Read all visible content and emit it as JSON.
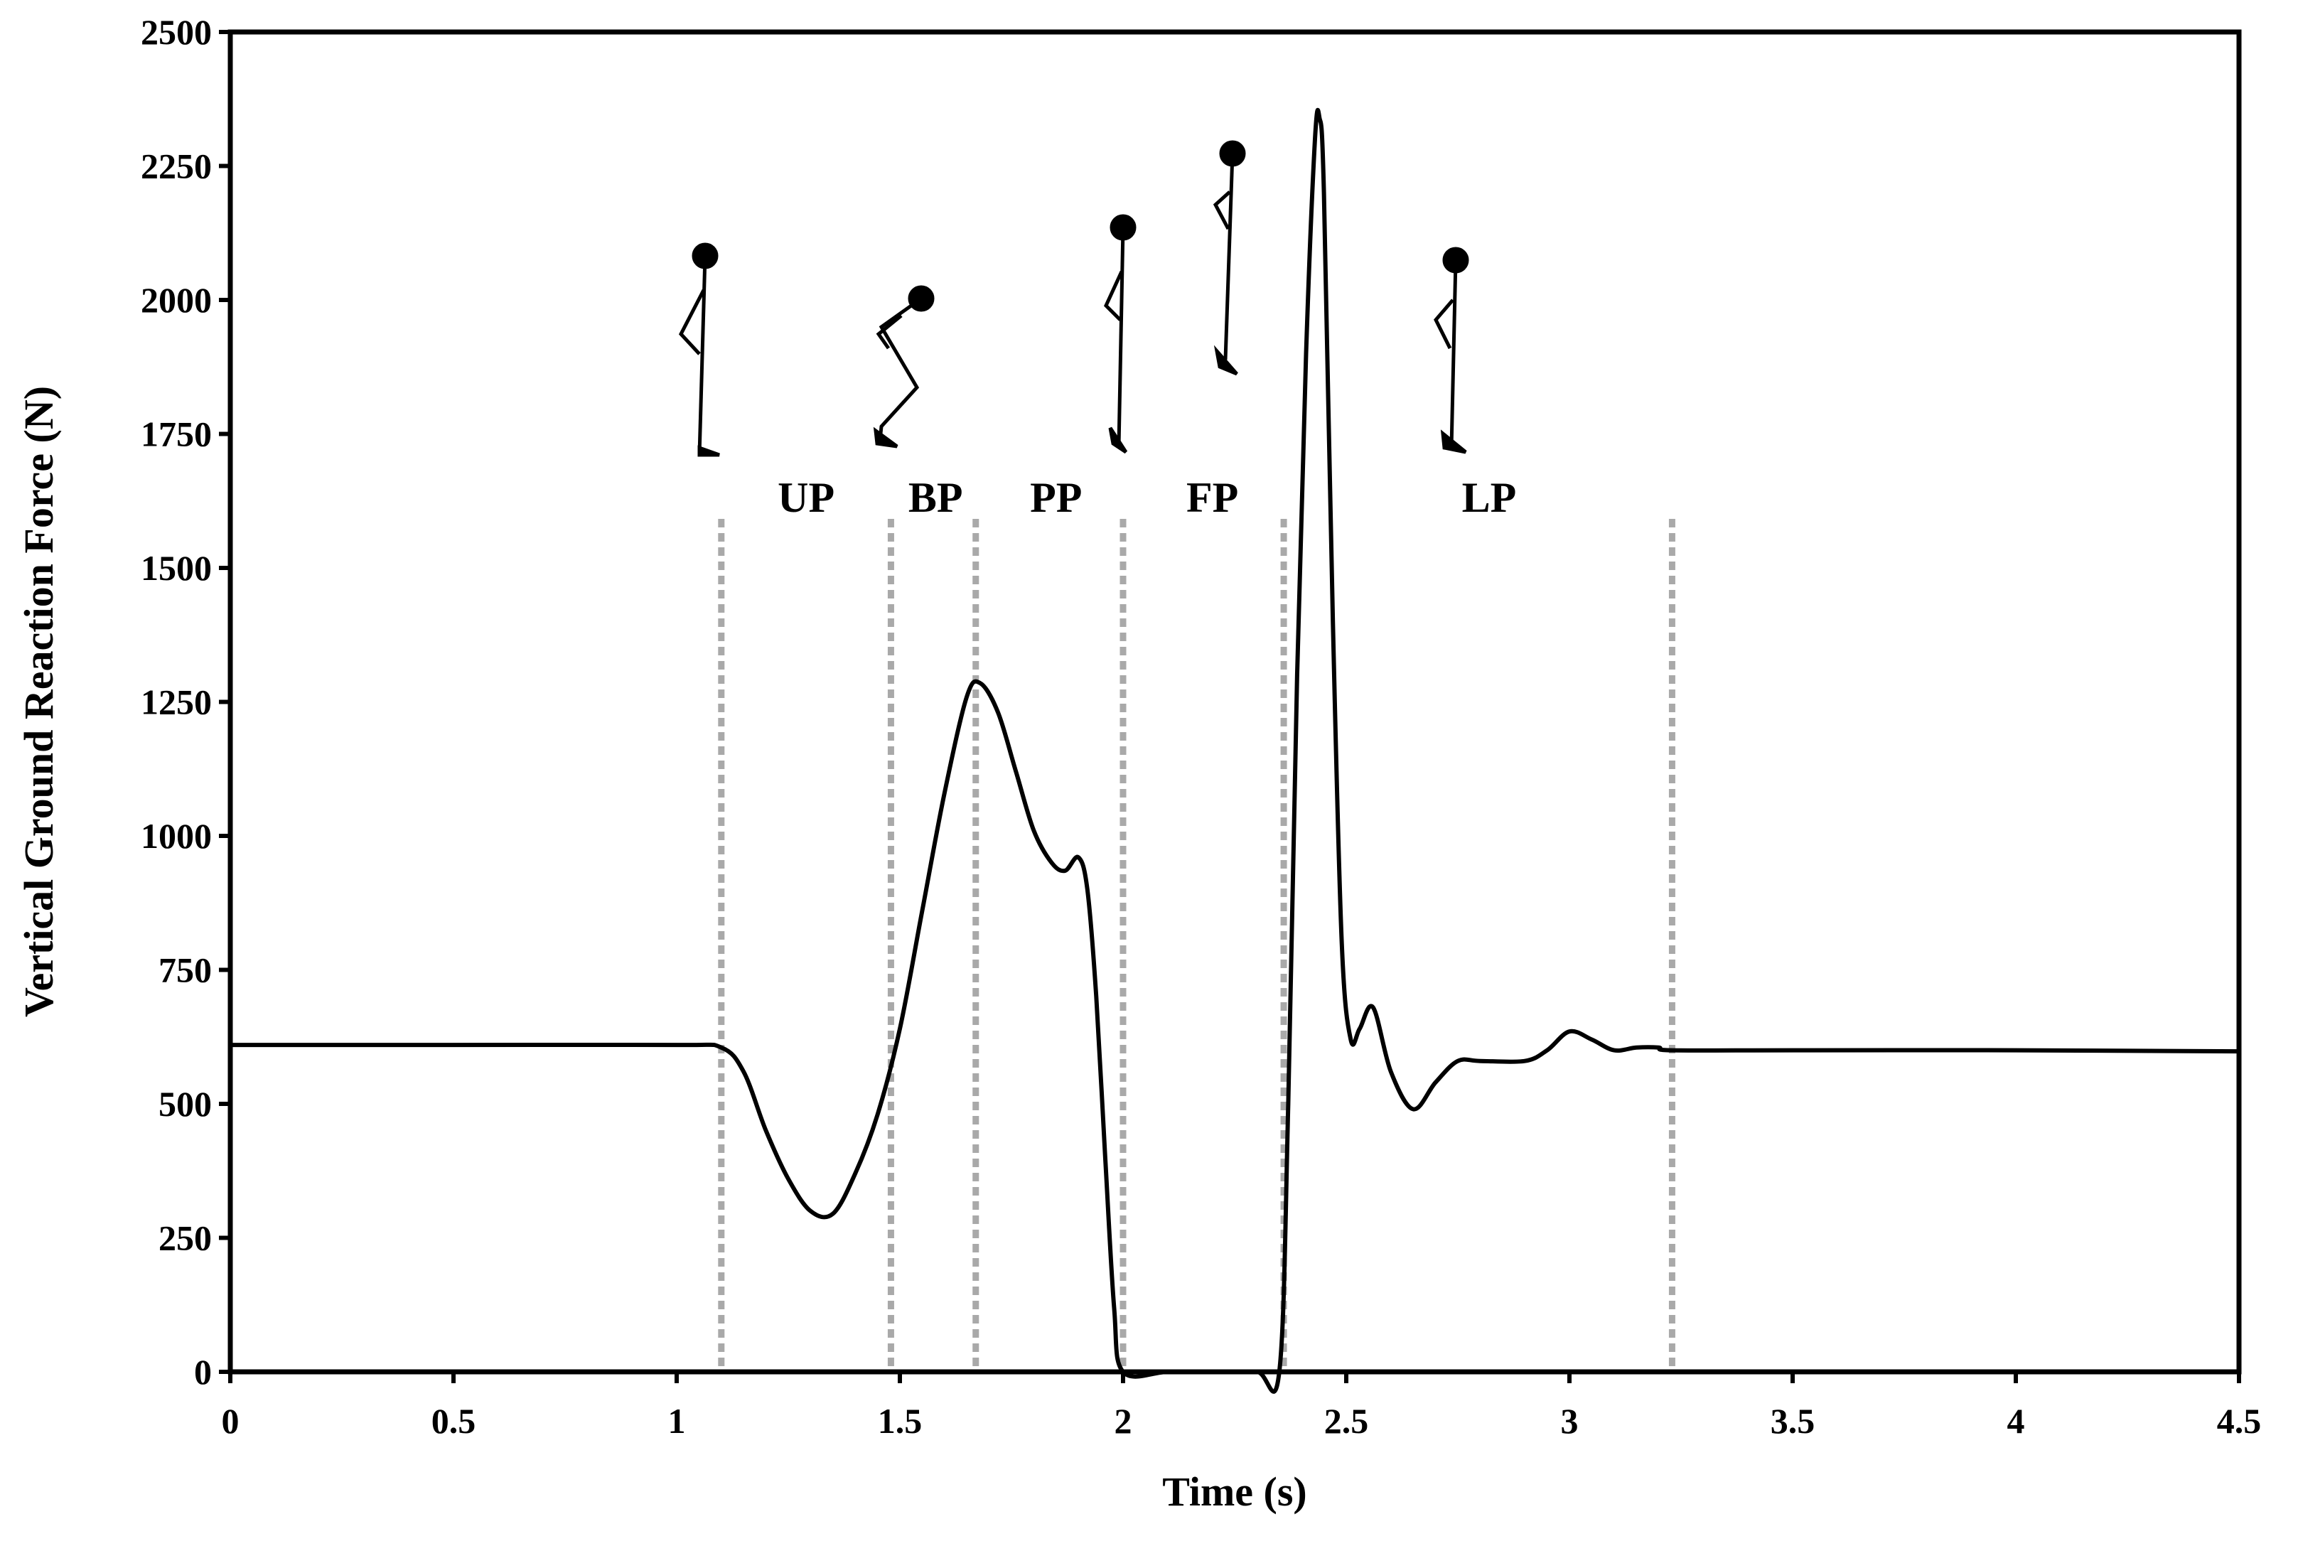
{
  "chart_data": {
    "type": "line",
    "title": "",
    "xlabel": "Time (s)",
    "ylabel": "Vertical Ground Reaction Force (N)",
    "xlim": [
      0,
      4.5
    ],
    "ylim": [
      0,
      2500
    ],
    "xticks": [
      0,
      0.5,
      1,
      1.5,
      2,
      2.5,
      3,
      3.5,
      4,
      4.5
    ],
    "xtick_labels": [
      "0",
      "0.5",
      "1",
      "1.5",
      "2",
      "2.5",
      "3",
      "3.5",
      "4",
      "4.5"
    ],
    "yticks": [
      0,
      250,
      500,
      750,
      1000,
      1250,
      1500,
      1750,
      2000,
      2250,
      2500
    ],
    "ytick_labels": [
      "0",
      "250",
      "500",
      "750",
      "1000",
      "1250",
      "1500",
      "1750",
      "2000",
      "2250",
      "2500"
    ],
    "grid": false,
    "legend": "none",
    "line_color": "#000000",
    "phase_line_color": "#a9a9a9",
    "phase_boundaries": [
      1.1,
      1.48,
      1.67,
      2.0,
      2.36,
      3.23
    ],
    "phases": [
      {
        "label": "UP",
        "x": 1.29
      },
      {
        "label": "BP",
        "x": 1.58
      },
      {
        "label": "PP",
        "x": 1.85
      },
      {
        "label": "FP",
        "x": 2.2
      },
      {
        "label": "LP",
        "x": 2.82
      }
    ],
    "series": [
      {
        "x": [
          0,
          0.5,
          1.0,
          1.1,
          1.15,
          1.2,
          1.25,
          1.3,
          1.35,
          1.4,
          1.45,
          1.5,
          1.55,
          1.6,
          1.65,
          1.68,
          1.72,
          1.76,
          1.8,
          1.84,
          1.87,
          1.9,
          1.92,
          1.94,
          1.96,
          1.98,
          2.0,
          2.1,
          2.2,
          2.3,
          2.35,
          2.37,
          2.39,
          2.41,
          2.43,
          2.44,
          2.45,
          2.47,
          2.49,
          2.51,
          2.53,
          2.56,
          2.6,
          2.65,
          2.7,
          2.75,
          2.8,
          2.9,
          2.95,
          3.0,
          3.05,
          3.1,
          3.15,
          3.2,
          3.23,
          3.5,
          4.0,
          4.5
        ],
        "y": [
          610,
          610,
          610,
          605,
          560,
          450,
          360,
          300,
          295,
          370,
          480,
          640,
          860,
          1080,
          1260,
          1285,
          1230,
          1120,
          1010,
          950,
          935,
          960,
          900,
          700,
          400,
          120,
          0,
          0,
          0,
          0,
          0,
          500,
          1300,
          1900,
          2300,
          2340,
          2200,
          1400,
          800,
          620,
          640,
          680,
          560,
          490,
          540,
          580,
          580,
          580,
          600,
          635,
          620,
          600,
          605,
          605,
          600,
          600,
          600,
          598
        ]
      }
    ]
  }
}
